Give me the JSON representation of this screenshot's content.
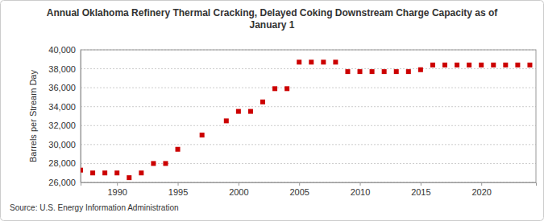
{
  "chart_data": {
    "type": "scatter",
    "title": "Annual Oklahoma Refinery Thermal Cracking, Delayed Coking Downstream Charge Capacity as of January 1",
    "y_label": "Barrels per Stream Day",
    "source": "Source: U.S. Energy Information Administration",
    "x": [
      1987,
      1988,
      1989,
      1990,
      1991,
      1992,
      1993,
      1994,
      1995,
      1997,
      1999,
      2000,
      2001,
      2002,
      2003,
      2004,
      2005,
      2006,
      2007,
      2008,
      2009,
      2010,
      2011,
      2012,
      2013,
      2014,
      2015,
      2016,
      2017,
      2018,
      2019,
      2020,
      2021,
      2022,
      2023,
      2024
    ],
    "values": [
      27300,
      27000,
      27000,
      27000,
      26500,
      27000,
      28000,
      28000,
      29500,
      31000,
      32500,
      33500,
      33500,
      34500,
      35900,
      35900,
      38700,
      38700,
      38700,
      38700,
      37700,
      37700,
      37700,
      37700,
      37700,
      37700,
      37900,
      38400,
      38400,
      38400,
      38400,
      38400,
      38400,
      38400,
      38400,
      38400
    ],
    "color": "#cc0000",
    "marker": "square",
    "xlim": [
      1987,
      2024.5
    ],
    "xticks": [
      1990,
      1995,
      2000,
      2005,
      2010,
      2015,
      2020
    ],
    "ylim": [
      26000,
      40000
    ],
    "yticks": [
      {
        "value": 26000,
        "label": "26,000"
      },
      {
        "value": 28000,
        "label": "28,000"
      },
      {
        "value": 30000,
        "label": "30,000"
      },
      {
        "value": 32000,
        "label": "32,000"
      },
      {
        "value": 34000,
        "label": "34,000"
      },
      {
        "value": 36000,
        "label": "36,000"
      },
      {
        "value": 38000,
        "label": "38,000"
      },
      {
        "value": 40000,
        "label": "40,000"
      }
    ],
    "grid": true
  }
}
